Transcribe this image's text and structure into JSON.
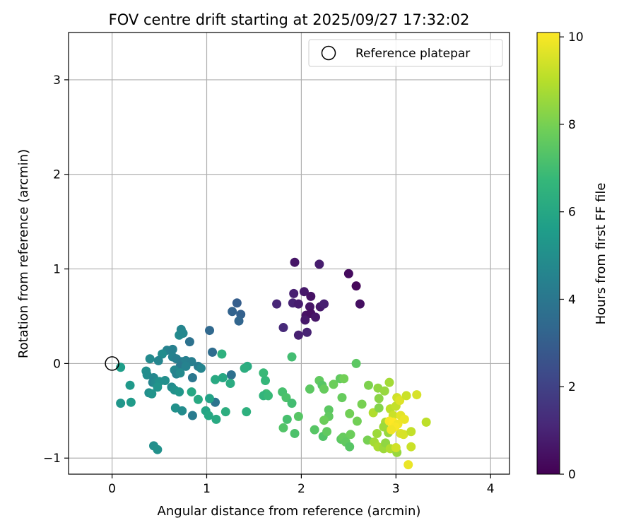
{
  "chart_data": {
    "type": "scatter",
    "title": "FOV centre drift starting at 2025/09/27 17:32:02",
    "xlabel": "Angular distance from reference (arcmin)",
    "ylabel": "Rotation from reference (arcmin)",
    "xlim": [
      -0.46,
      4.2
    ],
    "ylim": [
      -1.17,
      3.5
    ],
    "x_ticks": [
      0,
      1,
      2,
      3,
      4
    ],
    "y_ticks": [
      -1,
      0,
      1,
      2,
      3
    ],
    "grid": true,
    "legend": {
      "placement": "top-right",
      "entries": [
        "Reference platepar"
      ]
    },
    "reference_point": {
      "x": 0,
      "y": 0
    },
    "colorbar": {
      "label": "Hours from first FF file",
      "colormap": "viridis",
      "range": [
        0,
        10.1
      ],
      "ticks": [
        0,
        2,
        4,
        6,
        8,
        10
      ],
      "colors": [
        "#440154",
        "#482878",
        "#3e4989",
        "#31688e",
        "#26828e",
        "#1f9e89",
        "#35b779",
        "#6ece58",
        "#b5de2b",
        "#fde725"
      ]
    },
    "points": [
      {
        "x": 1.93,
        "y": 1.07,
        "h": 0.6
      },
      {
        "x": 2.19,
        "y": 1.05,
        "h": 0.8
      },
      {
        "x": 2.5,
        "y": 0.95,
        "h": 0.3
      },
      {
        "x": 2.58,
        "y": 0.82,
        "h": 0.2
      },
      {
        "x": 1.92,
        "y": 0.74,
        "h": 0.9
      },
      {
        "x": 2.03,
        "y": 0.76,
        "h": 0.7
      },
      {
        "x": 2.1,
        "y": 0.71,
        "h": 0.5
      },
      {
        "x": 2.62,
        "y": 0.63,
        "h": 0.4
      },
      {
        "x": 1.74,
        "y": 0.63,
        "h": 1.1
      },
      {
        "x": 1.91,
        "y": 0.64,
        "h": 1.0
      },
      {
        "x": 1.97,
        "y": 0.63,
        "h": 0.8
      },
      {
        "x": 2.09,
        "y": 0.6,
        "h": 0.6
      },
      {
        "x": 2.2,
        "y": 0.6,
        "h": 0.7
      },
      {
        "x": 2.24,
        "y": 0.63,
        "h": 0.9
      },
      {
        "x": 2.05,
        "y": 0.51,
        "h": 0.5
      },
      {
        "x": 2.1,
        "y": 0.53,
        "h": 0.4
      },
      {
        "x": 2.15,
        "y": 0.49,
        "h": 0.6
      },
      {
        "x": 2.04,
        "y": 0.46,
        "h": 0.7
      },
      {
        "x": 1.81,
        "y": 0.38,
        "h": 1.2
      },
      {
        "x": 2.06,
        "y": 0.33,
        "h": 1.0
      },
      {
        "x": 1.97,
        "y": 0.3,
        "h": 0.9
      },
      {
        "x": 1.32,
        "y": 0.64,
        "h": 3.0
      },
      {
        "x": 1.27,
        "y": 0.55,
        "h": 3.2
      },
      {
        "x": 1.36,
        "y": 0.52,
        "h": 3.1
      },
      {
        "x": 1.34,
        "y": 0.45,
        "h": 3.3
      },
      {
        "x": 1.03,
        "y": 0.35,
        "h": 3.4
      },
      {
        "x": 1.06,
        "y": 0.12,
        "h": 3.6
      },
      {
        "x": 0.82,
        "y": 0.23,
        "h": 3.8
      },
      {
        "x": 1.26,
        "y": -0.12,
        "h": 3.7
      },
      {
        "x": 1.09,
        "y": -0.41,
        "h": 3.9
      },
      {
        "x": 0.85,
        "y": -0.15,
        "h": 4.0
      },
      {
        "x": 0.85,
        "y": -0.55,
        "h": 4.2
      },
      {
        "x": 0.73,
        "y": 0.36,
        "h": 4.6
      },
      {
        "x": 0.71,
        "y": 0.3,
        "h": 4.8
      },
      {
        "x": 0.75,
        "y": 0.32,
        "h": 4.7
      },
      {
        "x": 0.58,
        "y": 0.14,
        "h": 4.5
      },
      {
        "x": 0.64,
        "y": 0.15,
        "h": 4.4
      },
      {
        "x": 0.53,
        "y": 0.1,
        "h": 4.9
      },
      {
        "x": 0.64,
        "y": 0.07,
        "h": 4.5
      },
      {
        "x": 0.68,
        "y": 0.05,
        "h": 4.3
      },
      {
        "x": 0.4,
        "y": 0.05,
        "h": 4.8
      },
      {
        "x": 0.49,
        "y": 0.03,
        "h": 4.6
      },
      {
        "x": 0.74,
        "y": 0.02,
        "h": 4.2
      },
      {
        "x": 0.78,
        "y": 0.03,
        "h": 4.4
      },
      {
        "x": 0.84,
        "y": 0.02,
        "h": 4.3
      },
      {
        "x": 0.72,
        "y": -0.03,
        "h": 4.1
      },
      {
        "x": 0.78,
        "y": -0.03,
        "h": 4.5
      },
      {
        "x": 0.91,
        "y": -0.03,
        "h": 4.2
      },
      {
        "x": 0.94,
        "y": -0.05,
        "h": 4.6
      },
      {
        "x": 0.66,
        "y": -0.07,
        "h": 4.7
      },
      {
        "x": 0.68,
        "y": -0.11,
        "h": 4.5
      },
      {
        "x": 0.72,
        "y": -0.1,
        "h": 4.8
      },
      {
        "x": 0.36,
        "y": -0.08,
        "h": 5.0
      },
      {
        "x": 0.37,
        "y": -0.12,
        "h": 4.9
      },
      {
        "x": 0.44,
        "y": -0.15,
        "h": 4.7
      },
      {
        "x": 0.43,
        "y": -0.2,
        "h": 4.6
      },
      {
        "x": 0.46,
        "y": -0.2,
        "h": 4.8
      },
      {
        "x": 0.5,
        "y": -0.19,
        "h": 5.1
      },
      {
        "x": 0.56,
        "y": -0.18,
        "h": 5.0
      },
      {
        "x": 0.48,
        "y": -0.25,
        "h": 5.2
      },
      {
        "x": 0.63,
        "y": -0.25,
        "h": 4.9
      },
      {
        "x": 0.66,
        "y": -0.28,
        "h": 5.1
      },
      {
        "x": 0.71,
        "y": -0.3,
        "h": 5.3
      },
      {
        "x": 0.39,
        "y": -0.31,
        "h": 5.0
      },
      {
        "x": 0.42,
        "y": -0.32,
        "h": 5.2
      },
      {
        "x": 0.67,
        "y": -0.47,
        "h": 5.1
      },
      {
        "x": 0.74,
        "y": -0.5,
        "h": 4.9
      },
      {
        "x": 0.19,
        "y": -0.23,
        "h": 5.4
      },
      {
        "x": 0.09,
        "y": -0.42,
        "h": 5.3
      },
      {
        "x": 0.2,
        "y": -0.41,
        "h": 5.5
      },
      {
        "x": 0.09,
        "y": -0.04,
        "h": 5.6
      },
      {
        "x": 0.44,
        "y": -0.87,
        "h": 5.0
      },
      {
        "x": 0.48,
        "y": -0.91,
        "h": 5.1
      },
      {
        "x": 1.16,
        "y": 0.1,
        "h": 6.4
      },
      {
        "x": 1.43,
        "y": -0.03,
        "h": 6.2
      },
      {
        "x": 1.4,
        "y": -0.05,
        "h": 6.3
      },
      {
        "x": 1.09,
        "y": -0.17,
        "h": 6.1
      },
      {
        "x": 1.17,
        "y": -0.15,
        "h": 6.0
      },
      {
        "x": 1.25,
        "y": -0.21,
        "h": 6.2
      },
      {
        "x": 0.84,
        "y": -0.3,
        "h": 6.0
      },
      {
        "x": 0.91,
        "y": -0.38,
        "h": 6.1
      },
      {
        "x": 1.03,
        "y": -0.37,
        "h": 5.8
      },
      {
        "x": 0.99,
        "y": -0.5,
        "h": 5.9
      },
      {
        "x": 1.02,
        "y": -0.55,
        "h": 6.0
      },
      {
        "x": 1.1,
        "y": -0.59,
        "h": 6.1
      },
      {
        "x": 1.2,
        "y": -0.51,
        "h": 6.3
      },
      {
        "x": 1.42,
        "y": -0.51,
        "h": 6.4
      },
      {
        "x": 1.6,
        "y": -0.1,
        "h": 6.8
      },
      {
        "x": 1.62,
        "y": -0.18,
        "h": 6.7
      },
      {
        "x": 1.63,
        "y": -0.32,
        "h": 6.9
      },
      {
        "x": 1.6,
        "y": -0.34,
        "h": 6.6
      },
      {
        "x": 1.65,
        "y": -0.34,
        "h": 6.8
      },
      {
        "x": 1.9,
        "y": 0.07,
        "h": 7.0
      },
      {
        "x": 1.8,
        "y": -0.3,
        "h": 7.1
      },
      {
        "x": 1.84,
        "y": -0.36,
        "h": 7.2
      },
      {
        "x": 1.9,
        "y": -0.42,
        "h": 7.0
      },
      {
        "x": 1.81,
        "y": -0.68,
        "h": 7.3
      },
      {
        "x": 1.85,
        "y": -0.59,
        "h": 7.1
      },
      {
        "x": 1.97,
        "y": -0.56,
        "h": 7.4
      },
      {
        "x": 1.93,
        "y": -0.74,
        "h": 7.2
      },
      {
        "x": 2.09,
        "y": -0.27,
        "h": 7.5
      },
      {
        "x": 2.19,
        "y": -0.18,
        "h": 7.6
      },
      {
        "x": 2.22,
        "y": -0.23,
        "h": 7.4
      },
      {
        "x": 2.24,
        "y": -0.27,
        "h": 7.7
      },
      {
        "x": 2.34,
        "y": -0.22,
        "h": 7.8
      },
      {
        "x": 2.41,
        "y": -0.16,
        "h": 7.6
      },
      {
        "x": 2.45,
        "y": -0.16,
        "h": 7.9
      },
      {
        "x": 2.58,
        "y": 0.0,
        "h": 7.5
      },
      {
        "x": 2.43,
        "y": -0.36,
        "h": 7.7
      },
      {
        "x": 2.29,
        "y": -0.49,
        "h": 7.5
      },
      {
        "x": 2.29,
        "y": -0.56,
        "h": 7.6
      },
      {
        "x": 2.24,
        "y": -0.6,
        "h": 7.8
      },
      {
        "x": 2.51,
        "y": -0.53,
        "h": 7.9
      },
      {
        "x": 2.14,
        "y": -0.7,
        "h": 7.4
      },
      {
        "x": 2.23,
        "y": -0.77,
        "h": 7.3
      },
      {
        "x": 2.27,
        "y": -0.72,
        "h": 7.6
      },
      {
        "x": 2.42,
        "y": -0.8,
        "h": 7.5
      },
      {
        "x": 2.44,
        "y": -0.78,
        "h": 7.7
      },
      {
        "x": 2.52,
        "y": -0.75,
        "h": 7.8
      },
      {
        "x": 2.47,
        "y": -0.83,
        "h": 7.6
      },
      {
        "x": 2.51,
        "y": -0.88,
        "h": 7.4
      },
      {
        "x": 2.59,
        "y": -0.61,
        "h": 7.9
      },
      {
        "x": 2.64,
        "y": -0.43,
        "h": 8.0
      },
      {
        "x": 2.71,
        "y": -0.23,
        "h": 8.1
      },
      {
        "x": 2.7,
        "y": -0.81,
        "h": 8.0
      },
      {
        "x": 2.81,
        "y": -0.26,
        "h": 8.4
      },
      {
        "x": 2.88,
        "y": -0.29,
        "h": 8.5
      },
      {
        "x": 2.93,
        "y": -0.2,
        "h": 8.7
      },
      {
        "x": 2.82,
        "y": -0.37,
        "h": 8.3
      },
      {
        "x": 2.76,
        "y": -0.52,
        "h": 8.9
      },
      {
        "x": 2.82,
        "y": -0.47,
        "h": 8.2
      },
      {
        "x": 2.89,
        "y": -0.62,
        "h": 8.8
      },
      {
        "x": 2.87,
        "y": -0.67,
        "h": 8.6
      },
      {
        "x": 2.92,
        "y": -0.73,
        "h": 8.5
      },
      {
        "x": 2.8,
        "y": -0.74,
        "h": 8.6
      },
      {
        "x": 2.77,
        "y": -0.83,
        "h": 8.7
      },
      {
        "x": 2.81,
        "y": -0.88,
        "h": 8.8
      },
      {
        "x": 2.87,
        "y": -0.9,
        "h": 8.6
      },
      {
        "x": 2.89,
        "y": -0.84,
        "h": 8.4
      },
      {
        "x": 2.94,
        "y": -0.9,
        "h": 8.9
      },
      {
        "x": 3.01,
        "y": -0.94,
        "h": 8.5
      },
      {
        "x": 2.94,
        "y": -0.48,
        "h": 9.1
      },
      {
        "x": 2.97,
        "y": -0.55,
        "h": 9.3
      },
      {
        "x": 3.0,
        "y": -0.45,
        "h": 9.2
      },
      {
        "x": 3.01,
        "y": -0.36,
        "h": 9.4
      },
      {
        "x": 3.04,
        "y": -0.39,
        "h": 9.6
      },
      {
        "x": 3.11,
        "y": -0.34,
        "h": 9.3
      },
      {
        "x": 3.22,
        "y": -0.33,
        "h": 9.5
      },
      {
        "x": 3.32,
        "y": -0.62,
        "h": 9.1
      },
      {
        "x": 3.05,
        "y": -0.55,
        "h": 9.7
      },
      {
        "x": 3.09,
        "y": -0.59,
        "h": 9.8
      },
      {
        "x": 2.93,
        "y": -0.61,
        "h": 10.0
      },
      {
        "x": 2.97,
        "y": -0.62,
        "h": 10.1
      },
      {
        "x": 3.02,
        "y": -0.64,
        "h": 9.9
      },
      {
        "x": 2.99,
        "y": -0.67,
        "h": 10.0
      },
      {
        "x": 2.95,
        "y": -0.7,
        "h": 9.9
      },
      {
        "x": 3.05,
        "y": -0.74,
        "h": 9.6
      },
      {
        "x": 3.08,
        "y": -0.75,
        "h": 9.5
      },
      {
        "x": 3.16,
        "y": -0.72,
        "h": 9.2
      },
      {
        "x": 3.0,
        "y": -0.89,
        "h": 9.4
      },
      {
        "x": 3.16,
        "y": -0.88,
        "h": 9.3
      },
      {
        "x": 3.13,
        "y": -1.07,
        "h": 9.8
      }
    ]
  }
}
